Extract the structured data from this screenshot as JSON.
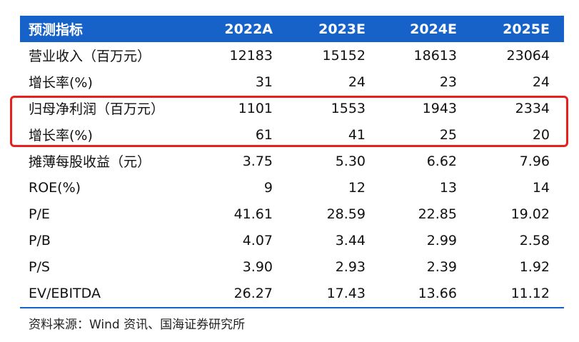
{
  "table": {
    "header": [
      "预测指标",
      "2022A",
      "2023E",
      "2024E",
      "2025E"
    ],
    "rows": [
      [
        "营业收入（百万元）",
        "12183",
        "15152",
        "18613",
        "23064"
      ],
      [
        "增长率(%)",
        "31",
        "24",
        "23",
        "24"
      ],
      [
        "归母净利润（百万元）",
        "1101",
        "1553",
        "1943",
        "2334"
      ],
      [
        "增长率(%)",
        "61",
        "41",
        "25",
        "20"
      ],
      [
        "摊薄每股收益（元）",
        "3.75",
        "5.30",
        "6.62",
        "7.96"
      ],
      [
        "ROE(%)",
        "9",
        "12",
        "13",
        "14"
      ],
      [
        "P/E",
        "41.61",
        "28.59",
        "22.85",
        "19.02"
      ],
      [
        "P/B",
        "4.07",
        "3.44",
        "2.99",
        "2.58"
      ],
      [
        "P/S",
        "3.90",
        "2.93",
        "2.39",
        "1.92"
      ],
      [
        "EV/EBITDA",
        "26.27",
        "17.43",
        "13.66",
        "11.12"
      ]
    ]
  },
  "source": "资料来源：Wind 资讯、国海证券研究所",
  "colors": {
    "header_bg": "#1762c9",
    "highlight_border": "#e8201d"
  }
}
